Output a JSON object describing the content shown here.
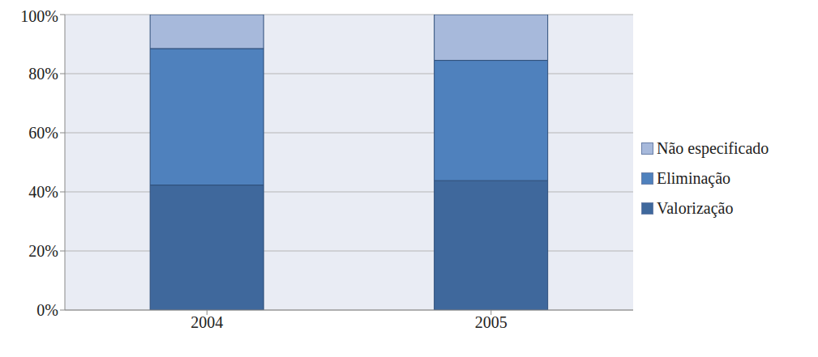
{
  "chart_data": {
    "type": "bar",
    "stacked": true,
    "categories": [
      "2004",
      "2005"
    ],
    "series": [
      {
        "name": "Valorização",
        "color": "#3F689C",
        "values": [
          42.3,
          43.8
        ]
      },
      {
        "name": "Eliminação",
        "color": "#4F81BD",
        "values": [
          46.2,
          40.7
        ]
      },
      {
        "name": "Não especificado",
        "color": "#A7B9DB",
        "values": [
          11.5,
          15.5
        ]
      }
    ],
    "ylim": [
      0,
      100
    ],
    "yticks": [
      {
        "value": 0,
        "label": "0%"
      },
      {
        "value": 20,
        "label": "20%"
      },
      {
        "value": 40,
        "label": "40%"
      },
      {
        "value": 60,
        "label": "60%"
      },
      {
        "value": 80,
        "label": "80%"
      },
      {
        "value": 100,
        "label": "100%"
      }
    ],
    "grid": true,
    "legend": "right"
  }
}
